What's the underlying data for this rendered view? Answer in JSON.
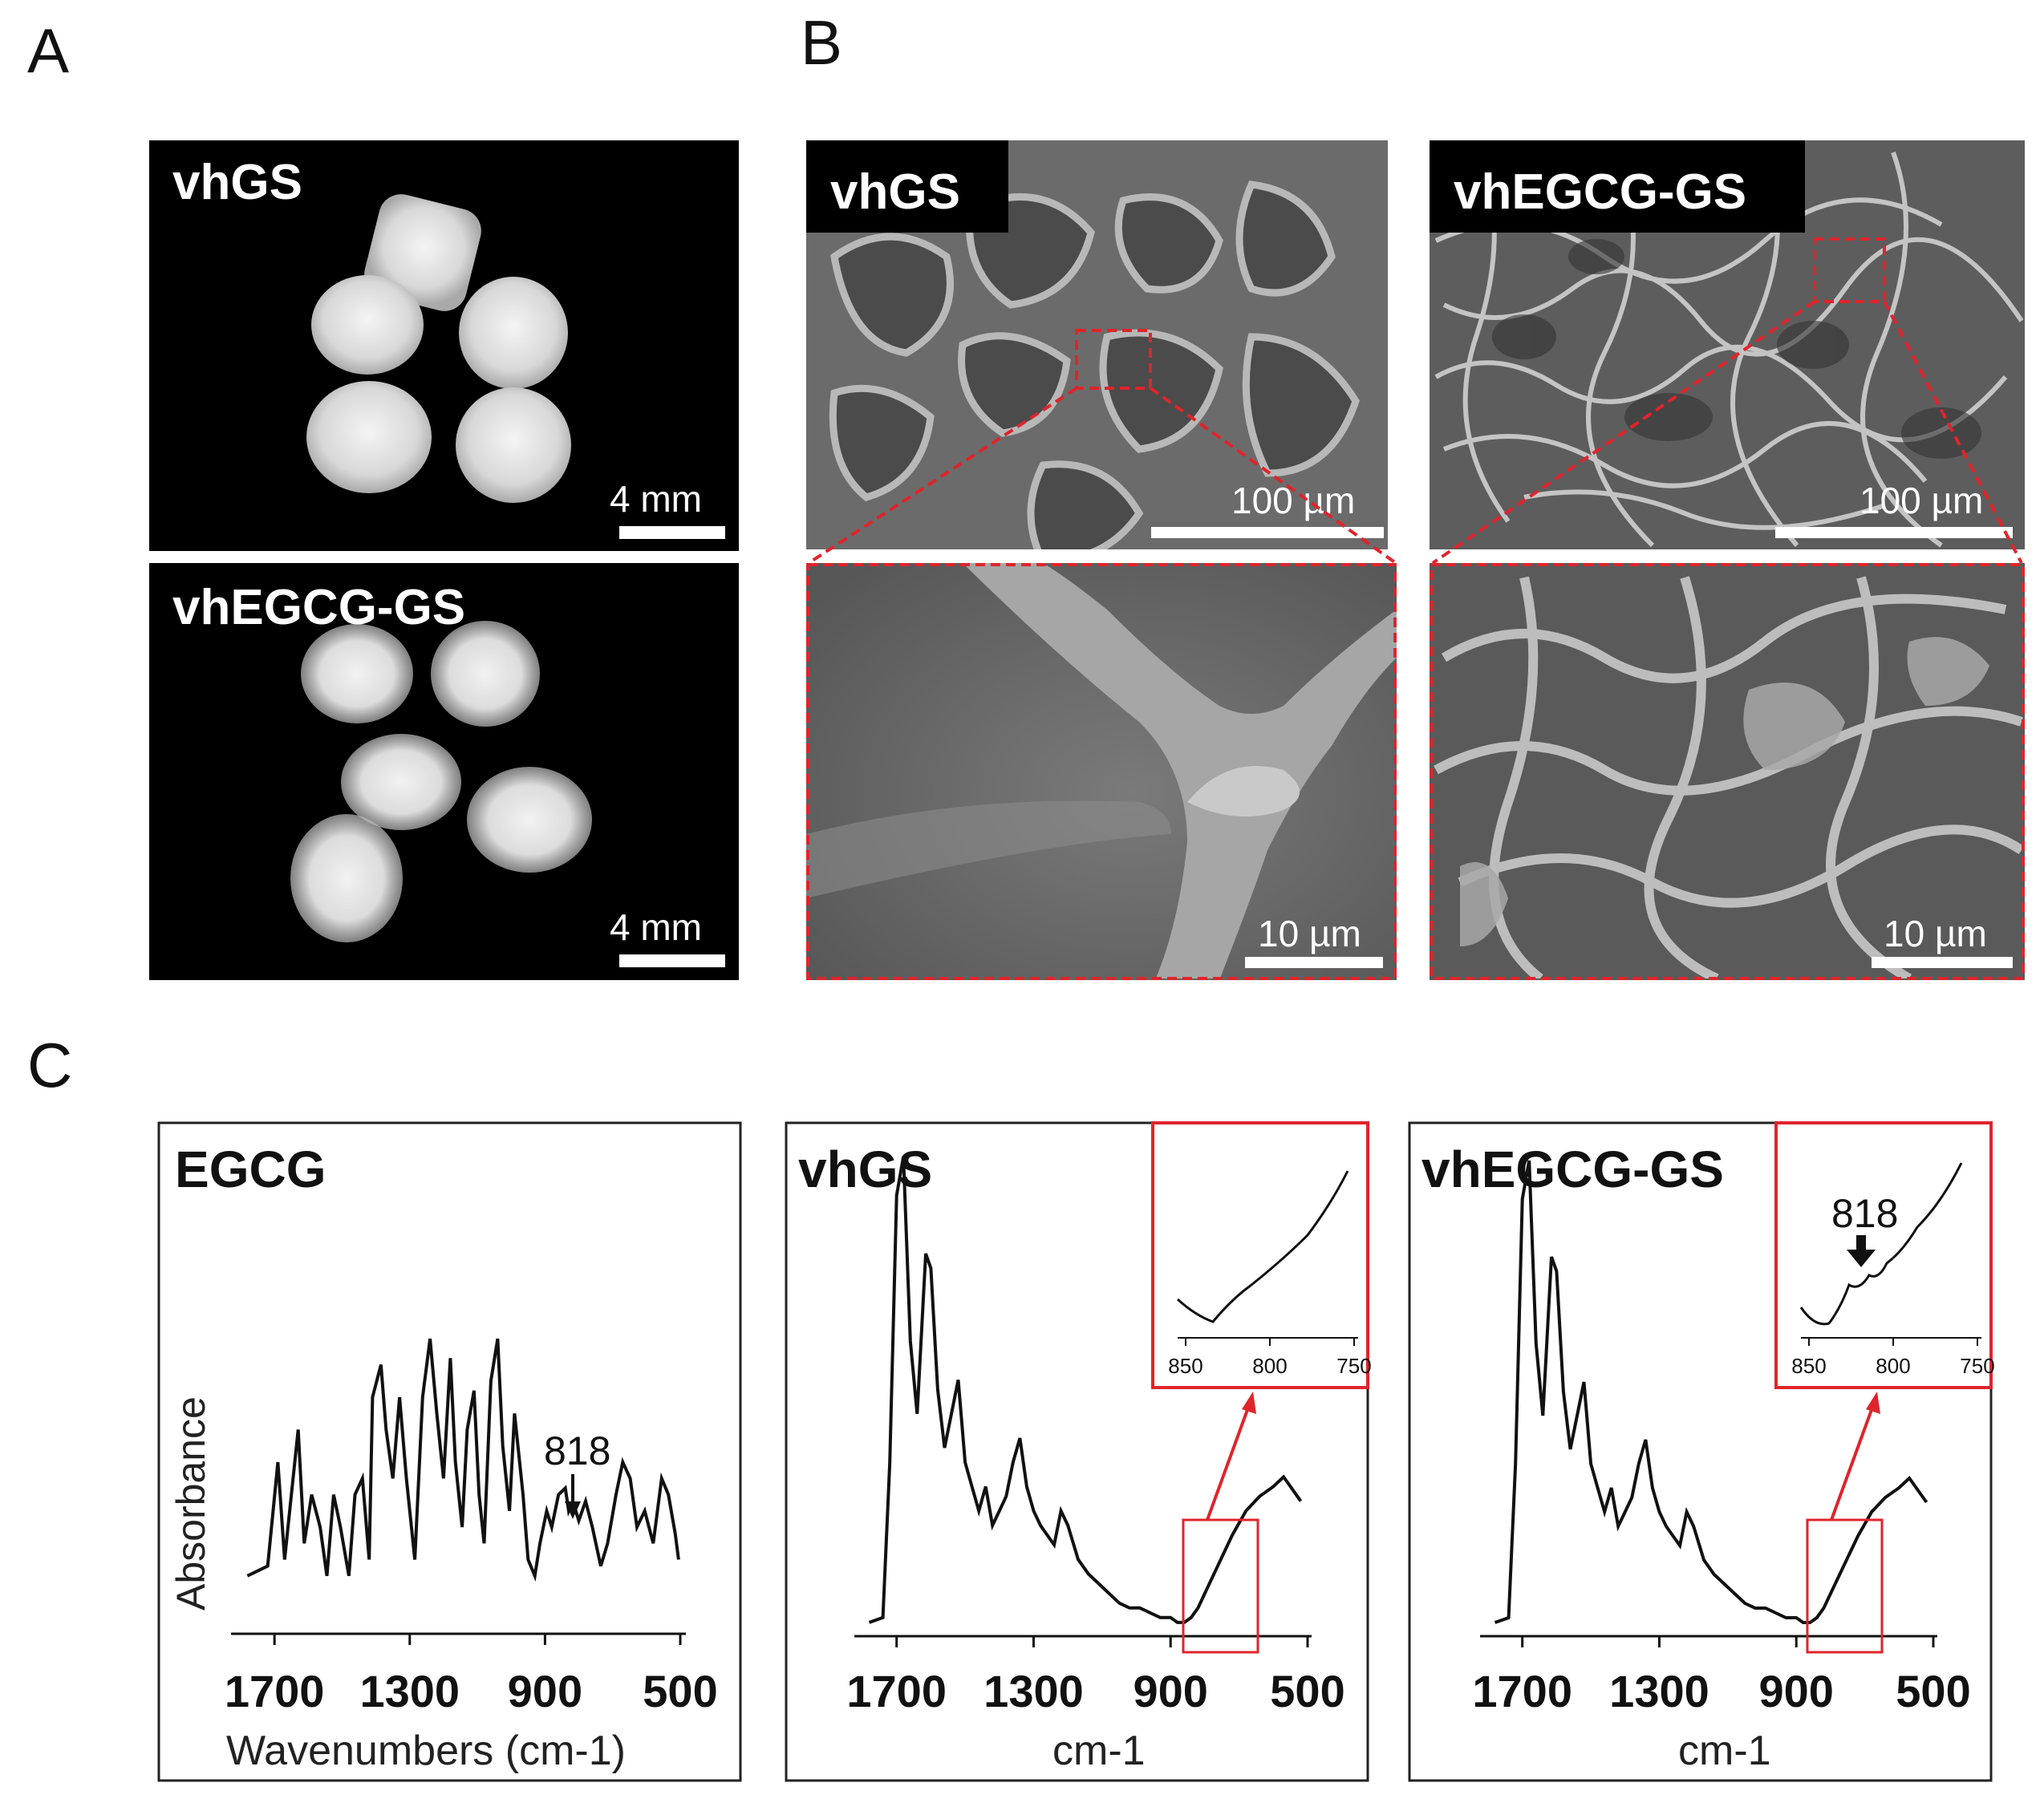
{
  "panel_labels": {
    "a": "A",
    "b": "B",
    "c": "C"
  },
  "photos": {
    "top": {
      "title": "vhGS",
      "scale": "4 mm"
    },
    "bottom": {
      "title": "vhEGCG-GS",
      "scale": "4 mm"
    }
  },
  "sem": {
    "left": {
      "title": "vhGS",
      "scale_top": "100 µm",
      "scale_bottom": "10 µm"
    },
    "right": {
      "title": "vhEGCG-GS",
      "scale_top": "100 µm",
      "scale_bottom": "10 µm"
    }
  },
  "colors": {
    "highlight": "#e0242b",
    "trace": "#111111",
    "photo_bg": "#000000"
  },
  "chart_data": [
    {
      "type": "line",
      "title": "EGCG",
      "xlabel": "Wavenumbers (cm-1)",
      "ylabel": "Absorbance",
      "x_reversed": true,
      "xlim": [
        1800,
        500
      ],
      "xticks": [
        "1700",
        "1300",
        "900",
        "500"
      ],
      "annotation": "818",
      "series": [
        {
          "x": [
            1780,
            1720,
            1690,
            1670,
            1655,
            1630,
            1612,
            1590,
            1565,
            1545,
            1525,
            1505,
            1480,
            1462,
            1440,
            1420,
            1410,
            1385,
            1370,
            1350,
            1330,
            1310,
            1285,
            1262,
            1240,
            1220,
            1200,
            1180,
            1165,
            1145,
            1130,
            1110,
            1095,
            1080,
            1060,
            1040,
            1025,
            1005,
            990,
            965,
            950,
            930,
            915,
            895,
            880,
            860,
            840,
            830,
            818,
            800,
            780,
            760,
            735,
            715,
            690,
            670,
            648,
            628,
            605,
            580,
            555,
            535,
            515,
            505
          ],
          "y": [
            0.05,
            0.08,
            0.4,
            0.1,
            0.25,
            0.5,
            0.15,
            0.3,
            0.2,
            0.05,
            0.3,
            0.2,
            0.05,
            0.3,
            0.35,
            0.1,
            0.6,
            0.7,
            0.5,
            0.35,
            0.6,
            0.35,
            0.1,
            0.6,
            0.78,
            0.55,
            0.35,
            0.72,
            0.4,
            0.2,
            0.5,
            0.62,
            0.3,
            0.15,
            0.65,
            0.78,
            0.45,
            0.25,
            0.55,
            0.3,
            0.1,
            0.05,
            0.15,
            0.25,
            0.2,
            0.3,
            0.32,
            0.25,
            0.28,
            0.22,
            0.28,
            0.2,
            0.08,
            0.15,
            0.3,
            0.4,
            0.35,
            0.2,
            0.25,
            0.15,
            0.35,
            0.3,
            0.18,
            0.1
          ]
        }
      ]
    },
    {
      "type": "line",
      "title": "vhGS",
      "xlabel": "cm-1",
      "x_reversed": true,
      "xlim": [
        1800,
        500
      ],
      "xticks": [
        "1700",
        "1300",
        "900",
        "500"
      ],
      "inset": {
        "xticks": [
          "850",
          "800",
          "750"
        ]
      },
      "series": [
        {
          "x": [
            1780,
            1740,
            1720,
            1700,
            1680,
            1660,
            1640,
            1615,
            1600,
            1580,
            1560,
            1540,
            1520,
            1500,
            1480,
            1460,
            1440,
            1420,
            1400,
            1380,
            1360,
            1340,
            1320,
            1300,
            1280,
            1260,
            1240,
            1220,
            1200,
            1170,
            1140,
            1110,
            1080,
            1050,
            1020,
            990,
            960,
            930,
            900,
            880,
            860,
            840,
            820,
            800,
            760,
            720,
            680,
            640,
            600,
            570,
            550,
            520
          ],
          "y": [
            0.02,
            0.03,
            0.35,
            0.9,
            0.98,
            0.6,
            0.45,
            0.78,
            0.75,
            0.5,
            0.38,
            0.45,
            0.52,
            0.35,
            0.3,
            0.25,
            0.3,
            0.22,
            0.25,
            0.28,
            0.35,
            0.4,
            0.3,
            0.25,
            0.22,
            0.2,
            0.18,
            0.25,
            0.22,
            0.15,
            0.12,
            0.1,
            0.08,
            0.06,
            0.05,
            0.05,
            0.04,
            0.03,
            0.03,
            0.02,
            0.02,
            0.03,
            0.05,
            0.08,
            0.14,
            0.2,
            0.25,
            0.28,
            0.3,
            0.32,
            0.3,
            0.27
          ]
        }
      ]
    },
    {
      "type": "line",
      "title": "vhEGCG-GS",
      "xlabel": "cm-1",
      "x_reversed": true,
      "xlim": [
        1800,
        500
      ],
      "xticks": [
        "1700",
        "1300",
        "900",
        "500"
      ],
      "annotation": "818",
      "inset": {
        "xticks": [
          "850",
          "800",
          "750"
        ]
      },
      "series": [
        {
          "x": [
            1780,
            1740,
            1720,
            1700,
            1680,
            1660,
            1640,
            1615,
            1600,
            1580,
            1560,
            1540,
            1520,
            1500,
            1480,
            1460,
            1440,
            1420,
            1400,
            1380,
            1360,
            1340,
            1320,
            1300,
            1280,
            1260,
            1240,
            1220,
            1200,
            1170,
            1140,
            1110,
            1080,
            1050,
            1020,
            990,
            960,
            930,
            900,
            880,
            860,
            840,
            820,
            800,
            760,
            720,
            680,
            640,
            600,
            570,
            550,
            520
          ],
          "y": [
            0.02,
            0.03,
            0.35,
            0.9,
            0.98,
            0.6,
            0.45,
            0.78,
            0.75,
            0.5,
            0.38,
            0.45,
            0.52,
            0.35,
            0.3,
            0.25,
            0.3,
            0.22,
            0.25,
            0.28,
            0.35,
            0.4,
            0.3,
            0.25,
            0.22,
            0.2,
            0.18,
            0.25,
            0.22,
            0.15,
            0.12,
            0.1,
            0.08,
            0.06,
            0.05,
            0.05,
            0.04,
            0.03,
            0.03,
            0.02,
            0.02,
            0.03,
            0.05,
            0.08,
            0.14,
            0.2,
            0.25,
            0.28,
            0.3,
            0.32,
            0.3,
            0.27
          ]
        }
      ]
    }
  ]
}
